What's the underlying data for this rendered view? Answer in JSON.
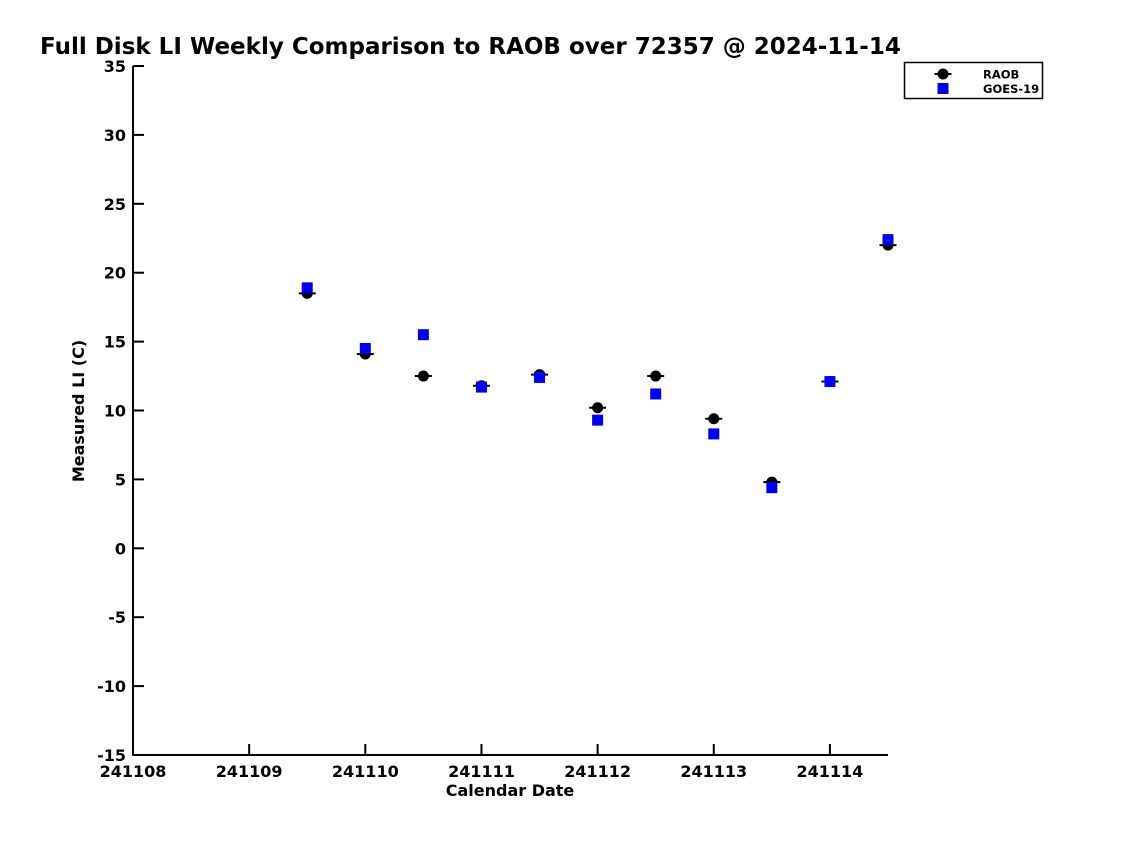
{
  "chart_data": {
    "type": "scatter",
    "title": "Full Disk LI Weekly Comparison to RAOB over 72357 @ 2024-11-14",
    "xlabel": "Calendar Date",
    "ylabel": "Measured LI (C)",
    "xlim": [
      241108,
      241114.5
    ],
    "ylim": [
      -15,
      35
    ],
    "xticks": [
      241108,
      241109,
      241110,
      241111,
      241112,
      241113,
      241114
    ],
    "yticks": [
      35,
      30,
      25,
      20,
      15,
      10,
      5,
      0,
      -5,
      -10,
      -15
    ],
    "grid": false,
    "background_color": "#ffffff",
    "axis_color": "#000000",
    "legend": {
      "position": "top-right",
      "entries": [
        {
          "label": "RAOB",
          "marker": "circle",
          "color": "#000000"
        },
        {
          "label": "GOES-19",
          "marker": "square",
          "color": "#0000ee"
        }
      ]
    },
    "x": [
      241109.5,
      241110,
      241110.5,
      241111,
      241111.5,
      241112,
      241112.5,
      241113,
      241113.5,
      241114,
      241114.5
    ],
    "series": [
      {
        "name": "RAOB",
        "marker": "circle",
        "color": "#000000",
        "values": [
          18.5,
          14.1,
          12.5,
          11.8,
          12.6,
          10.2,
          12.5,
          9.4,
          4.8,
          12.1,
          22.0
        ]
      },
      {
        "name": "GOES-19",
        "marker": "square",
        "color": "#0000ee",
        "values": [
          18.9,
          14.5,
          15.5,
          11.7,
          12.4,
          9.3,
          11.2,
          8.3,
          4.4,
          12.1,
          22.4
        ]
      }
    ]
  }
}
